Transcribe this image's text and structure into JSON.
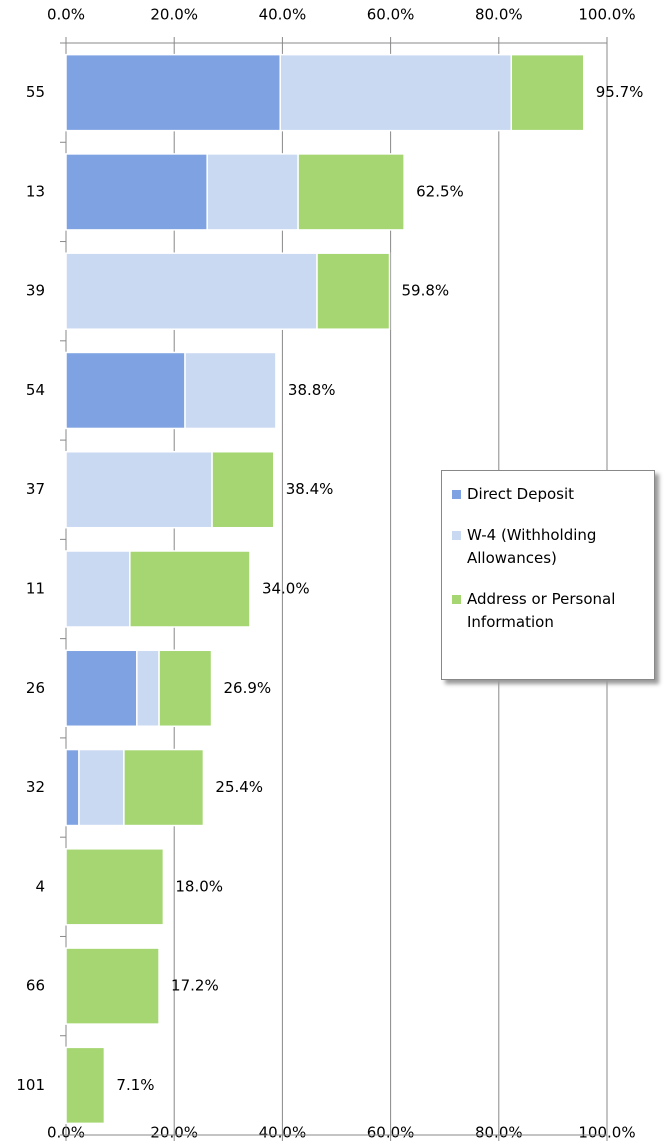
{
  "chart_data": {
    "type": "stacked_barh",
    "categories": [
      "55",
      "13",
      "39",
      "54",
      "37",
      "11",
      "26",
      "32",
      "4",
      "66",
      "101"
    ],
    "series": [
      {
        "name": "Direct Deposit",
        "color": "#7fa3e2",
        "values": [
          39.6,
          26.1,
          0,
          22.0,
          0,
          0,
          13.1,
          2.4,
          0,
          0,
          0
        ]
      },
      {
        "name": "W-4 (Withholding Allowances)",
        "color": "#c9d9f2",
        "values": [
          42.7,
          16.8,
          46.4,
          16.8,
          27.0,
          11.8,
          4.1,
          8.3,
          0,
          0,
          0
        ]
      },
      {
        "name": "Address or Personal Information",
        "color": "#a5d672",
        "values": [
          13.4,
          19.6,
          13.4,
          0,
          11.4,
          22.2,
          9.7,
          14.7,
          18.0,
          17.2,
          7.1
        ]
      }
    ],
    "totals": [
      95.7,
      62.5,
      59.8,
      38.8,
      38.4,
      34.0,
      26.9,
      25.4,
      18.0,
      17.2,
      7.1
    ],
    "total_labels": [
      "95.7%",
      "62.5%",
      "59.8%",
      "38.8%",
      "38.4%",
      "34.0%",
      "26.9%",
      "25.4%",
      "18.0%",
      "17.2%",
      "7.1%"
    ],
    "xlim": [
      0,
      100
    ],
    "xticks": [
      {
        "value": 0,
        "label": "0.0%"
      },
      {
        "value": 20,
        "label": "20.0%"
      },
      {
        "value": 40,
        "label": "40.0%"
      },
      {
        "value": 60,
        "label": "60.0%"
      },
      {
        "value": 80,
        "label": "80.0%"
      },
      {
        "value": 100,
        "label": "100.0%"
      }
    ],
    "grid": true,
    "legend": "right"
  }
}
